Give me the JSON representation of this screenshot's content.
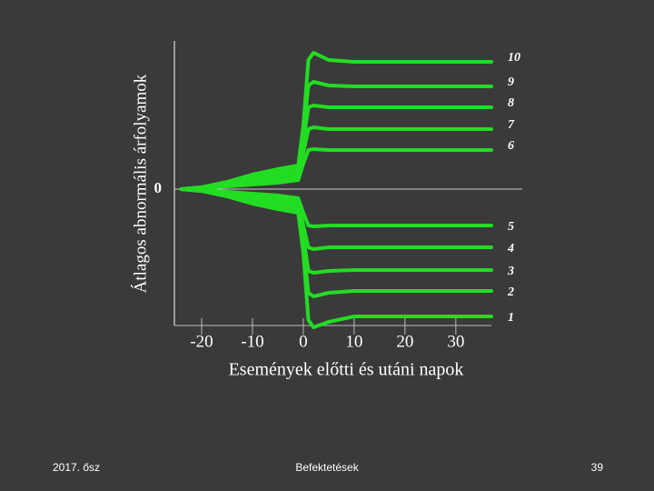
{
  "chart_data": {
    "type": "line",
    "y_label": "Átlagos abnormális árfolyamok",
    "x_label": "Események előtti és utáni napok",
    "x": [
      -24,
      -20,
      -15,
      -10,
      -5,
      -1,
      0,
      1,
      2,
      5,
      10,
      20,
      30,
      37
    ],
    "xlim": [
      -25,
      37
    ],
    "xticks": [
      -20,
      -10,
      0,
      10,
      20,
      30
    ],
    "ylim": [
      -7.5,
      8
    ],
    "yticks": [
      0
    ],
    "grid": false,
    "color": "#22dd22",
    "series": [
      {
        "name": "1",
        "color": "#22dd22",
        "values": [
          0,
          -0.1,
          -0.4,
          -0.8,
          -1.1,
          -1.3,
          -3.5,
          -7.2,
          -7.6,
          -7.3,
          -7.0,
          -7.0,
          -7.0,
          -7.0
        ]
      },
      {
        "name": "2",
        "color": "#22dd22",
        "values": [
          0,
          -0.1,
          -0.3,
          -0.6,
          -0.9,
          -1.1,
          -3.0,
          -5.7,
          -5.9,
          -5.7,
          -5.6,
          -5.6,
          -5.6,
          -5.6
        ]
      },
      {
        "name": "3",
        "color": "#22dd22",
        "values": [
          0,
          -0.1,
          -0.3,
          -0.5,
          -0.7,
          -0.9,
          -2.6,
          -4.5,
          -4.6,
          -4.5,
          -4.45,
          -4.45,
          -4.45,
          -4.45
        ]
      },
      {
        "name": "4",
        "color": "#22dd22",
        "values": [
          0,
          -0.1,
          -0.2,
          -0.4,
          -0.5,
          -0.7,
          -2.0,
          -3.2,
          -3.3,
          -3.2,
          -3.2,
          -3.2,
          -3.2,
          -3.2
        ]
      },
      {
        "name": "5",
        "color": "#22dd22",
        "values": [
          0,
          -0.05,
          -0.15,
          -0.25,
          -0.35,
          -0.5,
          -1.3,
          -2.0,
          -2.05,
          -2.0,
          -2.0,
          -2.0,
          -2.0,
          -2.0
        ]
      },
      {
        "name": "6",
        "color": "#22dd22",
        "values": [
          0,
          0.05,
          0.15,
          0.25,
          0.35,
          0.5,
          1.4,
          2.15,
          2.2,
          2.15,
          2.15,
          2.15,
          2.15,
          2.15
        ]
      },
      {
        "name": "7",
        "color": "#22dd22",
        "values": [
          0,
          0.1,
          0.2,
          0.4,
          0.5,
          0.7,
          2.0,
          3.3,
          3.4,
          3.3,
          3.3,
          3.3,
          3.3,
          3.3
        ]
      },
      {
        "name": "8",
        "color": "#22dd22",
        "values": [
          0,
          0.1,
          0.3,
          0.5,
          0.7,
          0.9,
          2.6,
          4.5,
          4.6,
          4.5,
          4.5,
          4.5,
          4.5,
          4.5
        ]
      },
      {
        "name": "9",
        "color": "#22dd22",
        "values": [
          0,
          0.1,
          0.3,
          0.6,
          0.9,
          1.1,
          3.0,
          5.7,
          5.9,
          5.7,
          5.65,
          5.65,
          5.65,
          5.65
        ]
      },
      {
        "name": "10",
        "color": "#22dd22",
        "values": [
          0,
          0.1,
          0.4,
          0.8,
          1.1,
          1.3,
          3.5,
          7.1,
          7.5,
          7.1,
          7.0,
          7.0,
          7.0,
          7.0
        ]
      }
    ]
  },
  "footer": {
    "left": "2017. ősz",
    "center": "Befektetések",
    "page": "39"
  }
}
